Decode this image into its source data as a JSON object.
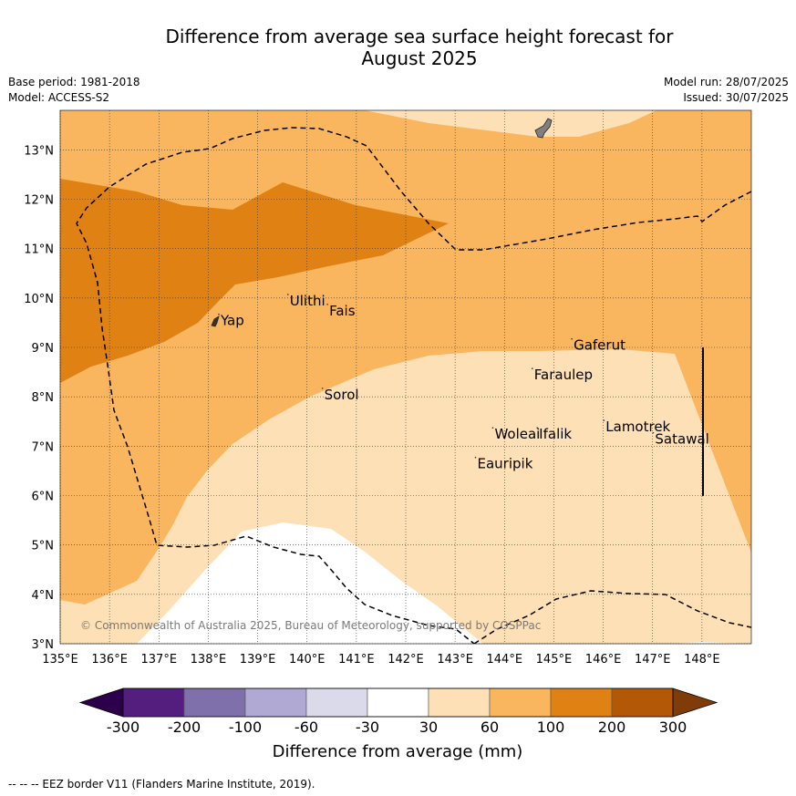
{
  "title_line1": "Difference from average sea surface height forecast for",
  "title_line2": "August 2025",
  "header": {
    "base_period": "Base period: 1981-2018",
    "model": "Model: ACCESS-S2",
    "model_run": "Model run: 28/07/2025",
    "issued": "Issued: 30/07/2025"
  },
  "map": {
    "lon_range": [
      135,
      149
    ],
    "lat_range": [
      3,
      13.8
    ],
    "lon_ticks": [
      135,
      136,
      137,
      138,
      139,
      140,
      141,
      142,
      143,
      144,
      145,
      146,
      147,
      148
    ],
    "lon_labels": [
      "135°E",
      "136°E",
      "137°E",
      "138°E",
      "139°E",
      "140°E",
      "141°E",
      "142°E",
      "143°E",
      "144°E",
      "145°E",
      "146°E",
      "147°E",
      "148°E"
    ],
    "lat_ticks": [
      3,
      4,
      5,
      6,
      7,
      8,
      9,
      10,
      11,
      12,
      13
    ],
    "lat_labels": [
      "3°N",
      "4°N",
      "5°N",
      "6°N",
      "7°N",
      "8°N",
      "9°N",
      "10°N",
      "11°N",
      "12°N",
      "13°N"
    ],
    "places": [
      {
        "name": "Yap",
        "lon": 138.25,
        "lat": 9.45
      },
      {
        "name": "Ulithi",
        "lon": 139.65,
        "lat": 9.85
      },
      {
        "name": "Fais",
        "lon": 140.45,
        "lat": 9.65
      },
      {
        "name": "Sorol",
        "lon": 140.35,
        "lat": 7.95
      },
      {
        "name": "Gaferut",
        "lon": 145.4,
        "lat": 8.95
      },
      {
        "name": "Faraulep",
        "lon": 144.6,
        "lat": 8.35
      },
      {
        "name": "Woleai",
        "lon": 143.8,
        "lat": 7.15
      },
      {
        "name": "Ifalik",
        "lon": 144.7,
        "lat": 7.15
      },
      {
        "name": "Lamotrek",
        "lon": 146.05,
        "lat": 7.3
      },
      {
        "name": "Satawal",
        "lon": 147.05,
        "lat": 7.05
      },
      {
        "name": "Eauripik",
        "lon": 143.45,
        "lat": 6.55
      }
    ],
    "copyright": "© Commonwealth of Australia 2025, Bureau of Meteorology, supported by COSPPac",
    "colors": {
      "above_30_60": "#fde0b6",
      "above_60_100": "#fab55f",
      "above_100_200": "#e08213",
      "land": "#808080",
      "eez": "#000000"
    }
  },
  "colorbar": {
    "labels": [
      "-300",
      "-200",
      "-100",
      "-60",
      "-30",
      "30",
      "60",
      "100",
      "200",
      "300"
    ],
    "colors": [
      "#531e7d",
      "#7f6fab",
      "#afa9d3",
      "#dadaeb",
      "#ffffff",
      "#fde0b6",
      "#fab55f",
      "#e08213",
      "#b35806"
    ],
    "under_color": "#2d004b",
    "over_color": "#7f3b08",
    "title": "Difference from average (mm)"
  },
  "footnote": "--  --  -- EEZ border V11 (Flanders Marine Institute, 2019)."
}
